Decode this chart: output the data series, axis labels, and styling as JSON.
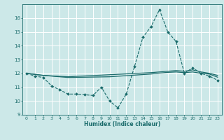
{
  "title": "",
  "xlabel": "Humidex (Indice chaleur)",
  "bg_color": "#cce8e8",
  "line_color": "#1a6b6b",
  "grid_color": "#ffffff",
  "xlim": [
    -0.5,
    23.5
  ],
  "ylim": [
    9,
    17
  ],
  "yticks": [
    9,
    10,
    11,
    12,
    13,
    14,
    15,
    16
  ],
  "xticks": [
    0,
    1,
    2,
    3,
    4,
    5,
    6,
    7,
    8,
    9,
    10,
    11,
    12,
    13,
    14,
    15,
    16,
    17,
    18,
    19,
    20,
    21,
    22,
    23
  ],
  "series_main": {
    "x": [
      0,
      1,
      2,
      3,
      4,
      5,
      6,
      7,
      8,
      9,
      10,
      11,
      12,
      13,
      14,
      15,
      16,
      17,
      18,
      19,
      20,
      21,
      22,
      23
    ],
    "y": [
      12.0,
      11.8,
      11.7,
      11.1,
      10.8,
      10.5,
      10.5,
      10.45,
      10.4,
      11.0,
      10.0,
      9.5,
      10.5,
      12.5,
      14.6,
      15.4,
      16.6,
      15.0,
      14.3,
      12.0,
      12.4,
      12.0,
      11.8,
      11.5
    ]
  },
  "series_upper": {
    "x": [
      0,
      2,
      5,
      10,
      15,
      16,
      17,
      18,
      19,
      20,
      21,
      22,
      23
    ],
    "y": [
      12.0,
      11.85,
      11.75,
      11.9,
      12.05,
      12.1,
      12.15,
      12.2,
      12.15,
      12.25,
      12.1,
      12.0,
      11.85
    ]
  },
  "series_lower": {
    "x": [
      0,
      2,
      5,
      10,
      15,
      16,
      17,
      18,
      19,
      20,
      21,
      22,
      23
    ],
    "y": [
      12.0,
      11.85,
      11.7,
      11.75,
      11.95,
      12.02,
      12.07,
      12.1,
      12.05,
      12.1,
      12.0,
      11.95,
      11.72
    ]
  }
}
